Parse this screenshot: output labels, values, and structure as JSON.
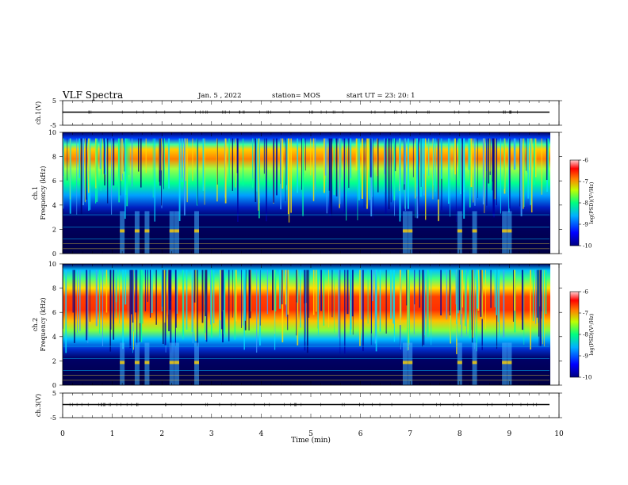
{
  "header": {
    "title": "VLF Spectra",
    "date": "Jan. 5 , 2022",
    "station": "station= MOS",
    "start": "start UT = 23: 20: 1"
  },
  "chart_data": [
    {
      "type": "line",
      "panel": "ch1-waveform",
      "ylabel": "ch.1(V)",
      "y_ticks": [
        "5",
        "-5"
      ],
      "ylim": [
        -5,
        5
      ],
      "x": [
        0,
        10
      ],
      "values": [
        0,
        0
      ],
      "xlim": [
        0,
        10
      ]
    },
    {
      "type": "heatmap",
      "panel": "ch1-spectrogram",
      "ylabel": "ch.1\nFrequency (kHz)",
      "y_ticks": [
        "0",
        "2",
        "4",
        "6",
        "8",
        "10"
      ],
      "ylim": [
        0,
        10
      ],
      "xlim": [
        0,
        10
      ],
      "colorbar": {
        "label": "log(PSD)(V²/Hz)",
        "ticks": [
          "-6",
          "-7",
          "-8",
          "-9",
          "-10"
        ],
        "range": [
          -10,
          -6
        ]
      },
      "band_kHz": [
        5,
        9.5
      ],
      "band_peak_log_psd": -6.5,
      "bursts_min": [
        1.2,
        1.5,
        1.7,
        2.2,
        2.3,
        2.7,
        6.9,
        7.0,
        8.0,
        8.3,
        8.9,
        9.0
      ]
    },
    {
      "type": "heatmap",
      "panel": "ch2-spectrogram",
      "ylabel": "ch.2\nFrequency (kHz)",
      "y_ticks": [
        "0",
        "2",
        "4",
        "6",
        "8",
        "10"
      ],
      "ylim": [
        0,
        10
      ],
      "xlim": [
        0,
        10
      ],
      "colorbar": {
        "label": "log(PSD)(V²/Hz)",
        "ticks": [
          "-6",
          "-7",
          "-8",
          "-9",
          "-10"
        ],
        "range": [
          -10,
          -6
        ]
      },
      "band_kHz": [
        4,
        9.5
      ],
      "band_peak_log_psd": -6.3,
      "bursts_min": [
        1.2,
        1.5,
        1.7,
        2.2,
        2.3,
        2.7,
        6.9,
        7.0,
        8.0,
        8.3,
        8.9,
        9.0
      ]
    },
    {
      "type": "line",
      "panel": "ch3-waveform",
      "ylabel": "ch.3(V)",
      "y_ticks": [
        "5",
        "-5"
      ],
      "ylim": [
        -5,
        5
      ],
      "x": [
        0,
        10
      ],
      "values": [
        0,
        0
      ],
      "xlim": [
        0,
        10
      ],
      "xlabel": "Time (min)",
      "x_ticks": [
        "0",
        "1",
        "2",
        "3",
        "4",
        "5",
        "6",
        "7",
        "8",
        "9",
        "10"
      ]
    }
  ],
  "colors": {
    "background": "#ffffff",
    "axis": "#000000",
    "noise_floor": "#000066"
  }
}
